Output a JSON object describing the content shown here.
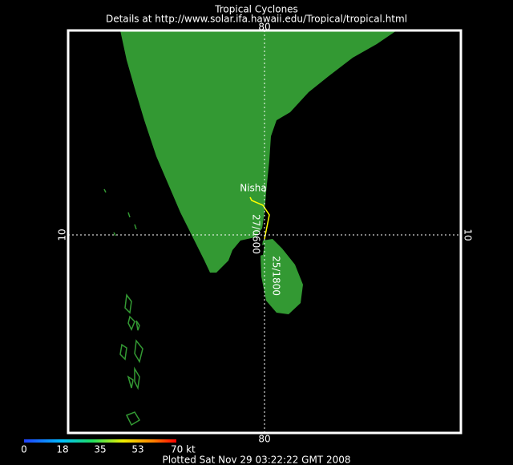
{
  "header": {
    "title": "Tropical Cyclones",
    "subtitle": "Details at http://www.solar.ifa.hawaii.edu/Tropical/tropical.html"
  },
  "map": {
    "top_label": "80",
    "bottom_label": "80",
    "left_label": "10",
    "right_label": "10",
    "storm": {
      "name": "Nisha",
      "track_labels": [
        "27/0600",
        "25/1800"
      ]
    }
  },
  "colorbar": {
    "labels": [
      "0",
      "18",
      "35",
      "53",
      "70 kt"
    ]
  },
  "footer": "Plotted Sat Nov 29 03:22:22 GMT 2008"
}
